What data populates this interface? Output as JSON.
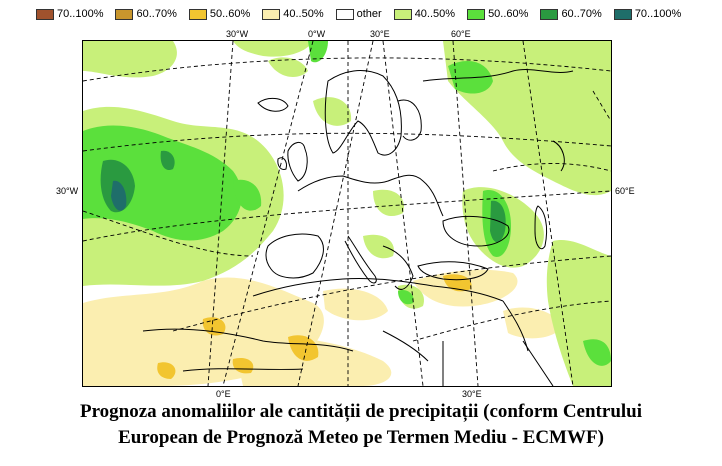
{
  "legend": [
    {
      "label": "70..100%",
      "color": "#a0522d"
    },
    {
      "label": "60..70%",
      "color": "#c8962d"
    },
    {
      "label": "50..60%",
      "color": "#f2c530"
    },
    {
      "label": "40..50%",
      "color": "#fbeeb0"
    },
    {
      "label": "other",
      "color": "#ffffff"
    },
    {
      "label": "40..50%",
      "color": "#c8f07a"
    },
    {
      "label": "50..60%",
      "color": "#5be03c"
    },
    {
      "label": "60..70%",
      "color": "#2a9a40"
    },
    {
      "label": "70..100%",
      "color": "#1f6e6a"
    }
  ],
  "map": {
    "top_labels": [
      "30°W",
      "0°W",
      "30°E",
      "60°E"
    ],
    "left_label": "30°W",
    "right_label": "60°E",
    "bottom_labels": [
      "0°E",
      "30°E"
    ]
  },
  "caption": {
    "line1": "Prognoza anomaliilor ale cantității de precipitații (conform Centrului",
    "line2": "European de Prognoză Meteo pe Termen Mediu - ECMWF)"
  }
}
